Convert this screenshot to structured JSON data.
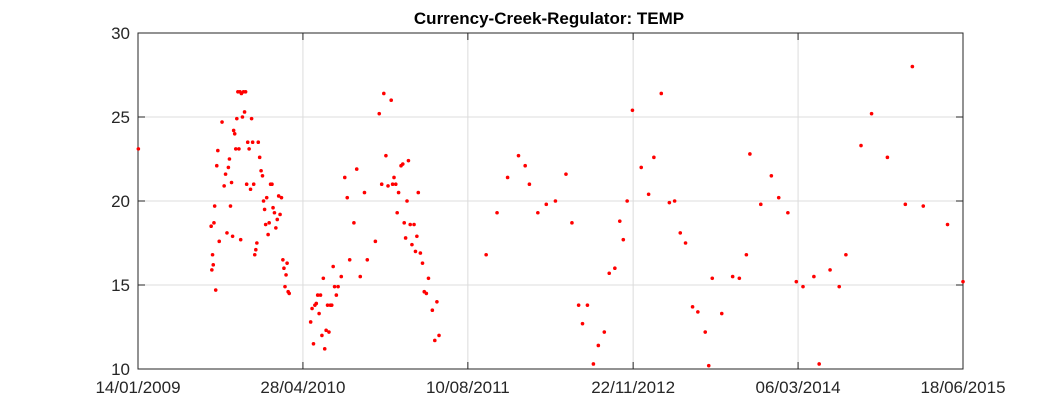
{
  "chart_data": {
    "type": "scatter",
    "title": "Currency-Creek-Regulator: TEMP",
    "xlabel": "",
    "ylabel": "",
    "xlim": [
      "2009-01-14",
      "2015-06-18"
    ],
    "ylim": [
      10,
      30
    ],
    "x_ticks": [
      "14/01/2009",
      "28/04/2010",
      "10/08/2011",
      "22/11/2012",
      "06/03/2014",
      "18/06/2015"
    ],
    "y_ticks": [
      10,
      15,
      20,
      25,
      30
    ],
    "grid": true,
    "legend": "none",
    "marker_color": "#ff0000",
    "series": [
      {
        "points": [
          [
            "2009-01-15",
            23.1
          ],
          [
            "2009-08-10",
            18.5
          ],
          [
            "2009-08-12",
            15.9
          ],
          [
            "2009-08-14",
            16.8
          ],
          [
            "2009-08-16",
            16.2
          ],
          [
            "2009-08-18",
            18.7
          ],
          [
            "2009-08-20",
            19.7
          ],
          [
            "2009-08-23",
            14.7
          ],
          [
            "2009-08-26",
            22.1
          ],
          [
            "2009-08-29",
            23.0
          ],
          [
            "2009-09-02",
            17.6
          ],
          [
            "2009-09-10",
            24.7
          ],
          [
            "2009-09-16",
            20.9
          ],
          [
            "2009-09-20",
            21.6
          ],
          [
            "2009-09-24",
            18.1
          ],
          [
            "2009-09-28",
            22.0
          ],
          [
            "2009-10-01",
            22.5
          ],
          [
            "2009-10-04",
            19.7
          ],
          [
            "2009-10-07",
            21.1
          ],
          [
            "2009-10-10",
            17.9
          ],
          [
            "2009-10-13",
            24.2
          ],
          [
            "2009-10-16",
            24.0
          ],
          [
            "2009-10-19",
            23.1
          ],
          [
            "2009-10-22",
            24.9
          ],
          [
            "2009-10-25",
            26.5
          ],
          [
            "2009-10-28",
            23.1
          ],
          [
            "2009-10-31",
            26.5
          ],
          [
            "2009-11-02",
            17.7
          ],
          [
            "2009-11-04",
            26.4
          ],
          [
            "2009-11-07",
            25.0
          ],
          [
            "2009-11-10",
            26.5
          ],
          [
            "2009-11-13",
            25.3
          ],
          [
            "2009-11-16",
            26.5
          ],
          [
            "2009-11-19",
            21.0
          ],
          [
            "2009-11-22",
            23.5
          ],
          [
            "2009-11-26",
            23.1
          ],
          [
            "2009-11-30",
            20.7
          ],
          [
            "2009-12-03",
            24.9
          ],
          [
            "2009-12-06",
            23.5
          ],
          [
            "2009-12-09",
            21.0
          ],
          [
            "2009-12-12",
            16.8
          ],
          [
            "2009-12-15",
            17.1
          ],
          [
            "2009-12-18",
            17.5
          ],
          [
            "2009-12-22",
            23.5
          ],
          [
            "2009-12-26",
            22.6
          ],
          [
            "2009-12-30",
            21.8
          ],
          [
            "2010-01-03",
            21.5
          ],
          [
            "2010-01-06",
            20.0
          ],
          [
            "2010-01-09",
            19.5
          ],
          [
            "2010-01-12",
            18.6
          ],
          [
            "2010-01-15",
            20.2
          ],
          [
            "2010-01-19",
            18.0
          ],
          [
            "2010-01-22",
            18.7
          ],
          [
            "2010-01-26",
            21.0
          ],
          [
            "2010-01-30",
            21.0
          ],
          [
            "2010-02-02",
            19.6
          ],
          [
            "2010-02-06",
            19.3
          ],
          [
            "2010-02-10",
            18.4
          ],
          [
            "2010-02-14",
            18.9
          ],
          [
            "2010-02-18",
            20.3
          ],
          [
            "2010-02-22",
            19.2
          ],
          [
            "2010-02-26",
            20.2
          ],
          [
            "2010-03-02",
            16.5
          ],
          [
            "2010-03-05",
            16.0
          ],
          [
            "2010-03-08",
            14.9
          ],
          [
            "2010-03-11",
            15.6
          ],
          [
            "2010-03-14",
            16.3
          ],
          [
            "2010-03-17",
            14.6
          ],
          [
            "2010-03-20",
            14.5
          ],
          [
            "2010-05-20",
            12.8
          ],
          [
            "2010-05-24",
            13.6
          ],
          [
            "2010-05-28",
            11.5
          ],
          [
            "2010-06-01",
            13.8
          ],
          [
            "2010-06-05",
            13.9
          ],
          [
            "2010-06-09",
            14.4
          ],
          [
            "2010-06-13",
            13.3
          ],
          [
            "2010-06-17",
            14.4
          ],
          [
            "2010-06-21",
            12.0
          ],
          [
            "2010-06-25",
            15.4
          ],
          [
            "2010-06-29",
            11.2
          ],
          [
            "2010-07-03",
            12.3
          ],
          [
            "2010-07-07",
            13.8
          ],
          [
            "2010-07-11",
            12.2
          ],
          [
            "2010-07-15",
            13.8
          ],
          [
            "2010-07-19",
            13.8
          ],
          [
            "2010-07-23",
            16.1
          ],
          [
            "2010-07-27",
            14.9
          ],
          [
            "2010-08-01",
            14.4
          ],
          [
            "2010-08-06",
            14.9
          ],
          [
            "2010-08-15",
            15.5
          ],
          [
            "2010-08-25",
            21.4
          ],
          [
            "2010-09-01",
            20.2
          ],
          [
            "2010-09-08",
            16.5
          ],
          [
            "2010-09-20",
            18.7
          ],
          [
            "2010-09-28",
            21.9
          ],
          [
            "2010-10-08",
            15.5
          ],
          [
            "2010-10-20",
            20.5
          ],
          [
            "2010-10-28",
            16.5
          ],
          [
            "2010-11-20",
            17.6
          ],
          [
            "2010-12-01",
            25.2
          ],
          [
            "2010-12-08",
            21.0
          ],
          [
            "2010-12-14",
            26.4
          ],
          [
            "2010-12-20",
            22.7
          ],
          [
            "2010-12-26",
            20.9
          ],
          [
            "2011-01-04",
            26.0
          ],
          [
            "2011-01-08",
            21.0
          ],
          [
            "2011-01-12",
            21.4
          ],
          [
            "2011-01-17",
            21.0
          ],
          [
            "2011-01-21",
            19.3
          ],
          [
            "2011-01-25",
            20.5
          ],
          [
            "2011-02-01",
            22.1
          ],
          [
            "2011-02-06",
            22.2
          ],
          [
            "2011-02-10",
            18.7
          ],
          [
            "2011-02-14",
            17.8
          ],
          [
            "2011-02-18",
            20.0
          ],
          [
            "2011-02-22",
            22.4
          ],
          [
            "2011-02-27",
            18.6
          ],
          [
            "2011-03-04",
            17.4
          ],
          [
            "2011-03-10",
            18.6
          ],
          [
            "2011-03-14",
            17.0
          ],
          [
            "2011-03-18",
            17.9
          ],
          [
            "2011-03-22",
            20.5
          ],
          [
            "2011-03-28",
            16.9
          ],
          [
            "2011-04-03",
            16.3
          ],
          [
            "2011-04-08",
            14.6
          ],
          [
            "2011-04-14",
            14.5
          ],
          [
            "2011-04-20",
            15.4
          ],
          [
            "2011-05-01",
            13.5
          ],
          [
            "2011-05-08",
            11.7
          ],
          [
            "2011-05-14",
            14.0
          ],
          [
            "2011-05-20",
            12.0
          ],
          [
            "2011-10-01",
            16.8
          ],
          [
            "2011-11-01",
            19.3
          ],
          [
            "2011-12-01",
            21.4
          ],
          [
            "2012-01-01",
            22.7
          ],
          [
            "2012-01-20",
            22.1
          ],
          [
            "2012-02-01",
            21.0
          ],
          [
            "2012-02-25",
            19.3
          ],
          [
            "2012-03-20",
            19.8
          ],
          [
            "2012-04-15",
            20.0
          ],
          [
            "2012-05-15",
            21.6
          ],
          [
            "2012-06-01",
            18.7
          ],
          [
            "2012-06-20",
            13.8
          ],
          [
            "2012-07-01",
            12.7
          ],
          [
            "2012-07-15",
            13.8
          ],
          [
            "2012-08-01",
            10.3
          ],
          [
            "2012-08-15",
            11.4
          ],
          [
            "2012-09-01",
            12.2
          ],
          [
            "2012-09-15",
            15.7
          ],
          [
            "2012-10-01",
            16.0
          ],
          [
            "2012-10-15",
            18.8
          ],
          [
            "2012-10-25",
            17.7
          ],
          [
            "2012-11-05",
            20.0
          ],
          [
            "2012-11-20",
            25.4
          ],
          [
            "2012-12-15",
            22.0
          ],
          [
            "2013-01-05",
            20.4
          ],
          [
            "2013-01-20",
            22.6
          ],
          [
            "2013-02-10",
            26.4
          ],
          [
            "2013-03-05",
            19.9
          ],
          [
            "2013-03-20",
            20.0
          ],
          [
            "2013-04-05",
            18.1
          ],
          [
            "2013-04-20",
            17.5
          ],
          [
            "2013-05-10",
            13.7
          ],
          [
            "2013-05-25",
            13.4
          ],
          [
            "2013-06-15",
            12.2
          ],
          [
            "2013-06-25",
            10.2
          ],
          [
            "2013-07-05",
            15.4
          ],
          [
            "2013-08-01",
            13.3
          ],
          [
            "2013-09-01",
            15.5
          ],
          [
            "2013-09-20",
            15.4
          ],
          [
            "2013-10-10",
            16.8
          ],
          [
            "2013-10-20",
            22.8
          ],
          [
            "2013-11-20",
            19.8
          ],
          [
            "2013-12-20",
            21.5
          ],
          [
            "2014-01-10",
            20.2
          ],
          [
            "2014-02-05",
            19.3
          ],
          [
            "2014-03-01",
            15.2
          ],
          [
            "2014-03-20",
            14.9
          ],
          [
            "2014-04-20",
            15.5
          ],
          [
            "2014-05-05",
            10.3
          ],
          [
            "2014-06-05",
            15.9
          ],
          [
            "2014-07-01",
            14.9
          ],
          [
            "2014-07-20",
            16.8
          ],
          [
            "2014-09-01",
            23.3
          ],
          [
            "2014-10-01",
            25.2
          ],
          [
            "2014-11-15",
            22.6
          ],
          [
            "2015-01-05",
            19.8
          ],
          [
            "2015-01-25",
            28.0
          ],
          [
            "2015-02-25",
            19.7
          ],
          [
            "2015-05-05",
            18.6
          ],
          [
            "2015-06-18",
            15.2
          ]
        ]
      }
    ]
  }
}
